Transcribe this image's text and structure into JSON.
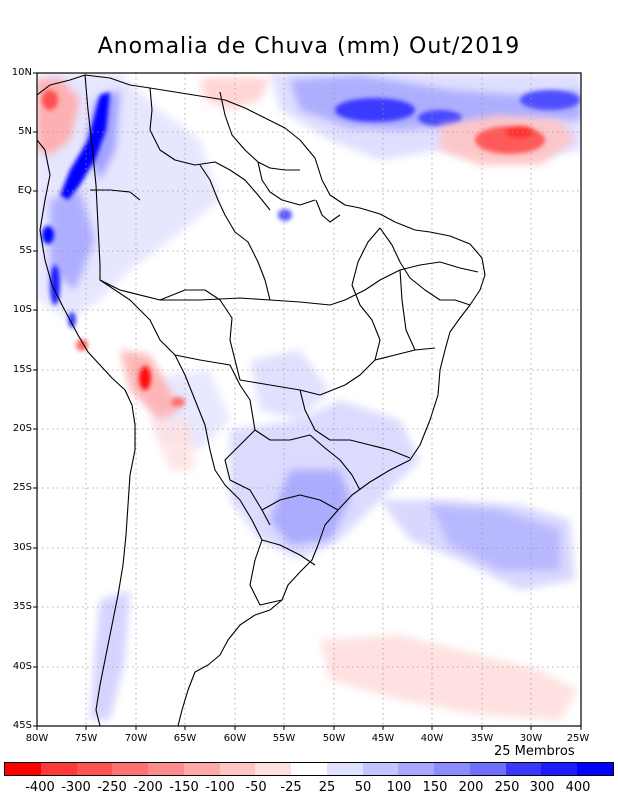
{
  "title": "Anomalia de Chuva (mm) Out/2019",
  "members_label": "25 Membros",
  "lat_labels": [
    "10N",
    "5N",
    "EQ",
    "5S",
    "10S",
    "15S",
    "20S",
    "25S",
    "30S",
    "35S",
    "40S",
    "45S"
  ],
  "lon_labels": [
    "80W",
    "75W",
    "70W",
    "65W",
    "60W",
    "55W",
    "50W",
    "45W",
    "40W",
    "35W",
    "30W",
    "25W"
  ],
  "colorbar": {
    "ticks": [
      "-400",
      "-300",
      "-250",
      "-200",
      "-150",
      "-100",
      "-50",
      "-25",
      "25",
      "50",
      "100",
      "150",
      "200",
      "250",
      "300",
      "400"
    ],
    "colors": [
      "#ff0000",
      "#ff3838",
      "#ff5454",
      "#ff7070",
      "#ff8c8c",
      "#ffa8a8",
      "#ffc4c4",
      "#ffe0e0",
      "#ffffff",
      "#e0e0ff",
      "#c4c4ff",
      "#a8a8ff",
      "#8c8cff",
      "#7070ff",
      "#3838ff",
      "#1c1cff",
      "#0000ff"
    ]
  }
}
